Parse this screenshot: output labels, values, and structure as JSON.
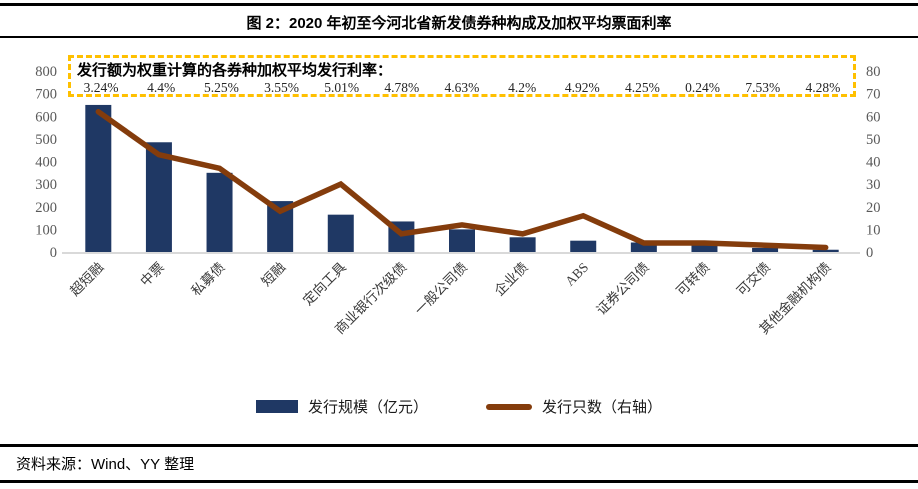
{
  "header": {
    "title": "图 2：2020 年初至今河北省新发债券种构成及加权平均票面利率"
  },
  "annotation": {
    "heading": "发行额为权重计算的各券种加权平均发行利率：",
    "rates": [
      "3.24%",
      "4.4%",
      "5.25%",
      "3.55%",
      "5.01%",
      "4.78%",
      "4.63%",
      "4.2%",
      "4.92%",
      "4.25%",
      "0.24%",
      "7.53%",
      "4.28%"
    ],
    "border_color": "#FFC000"
  },
  "chart_data": {
    "type": "bar",
    "subtype": "bar+line combo, dual axis",
    "categories": [
      "超短融",
      "中票",
      "私募债",
      "短融",
      "定向工具",
      "商业银行次级债",
      "一般公司债",
      "企业债",
      "ABS",
      "证券公司债",
      "可转债",
      "可交债",
      "其他金融机构债"
    ],
    "series": [
      {
        "name": "发行规模（亿元）",
        "type": "bar",
        "axis": "left",
        "color": "#1F3864",
        "values": [
          650,
          485,
          350,
          225,
          165,
          135,
          100,
          65,
          50,
          42,
          42,
          18,
          10
        ]
      },
      {
        "name": "发行只数（右轴）",
        "type": "line",
        "axis": "right",
        "color": "#843C0C",
        "values": [
          62,
          43,
          37,
          18,
          30,
          8,
          12,
          8,
          16,
          4,
          4,
          3,
          2
        ]
      }
    ],
    "left_axis": {
      "min": 0,
      "max": 800,
      "step": 100
    },
    "right_axis": {
      "min": 0,
      "max": 80,
      "step": 10
    },
    "grid": false,
    "legend_position": "bottom",
    "axis_text_color": "#595959",
    "axis_line_color": "#D9D9D9",
    "category_text_color": "#3a3a3a"
  },
  "footer": {
    "source": "资料来源：Wind、YY 整理"
  }
}
